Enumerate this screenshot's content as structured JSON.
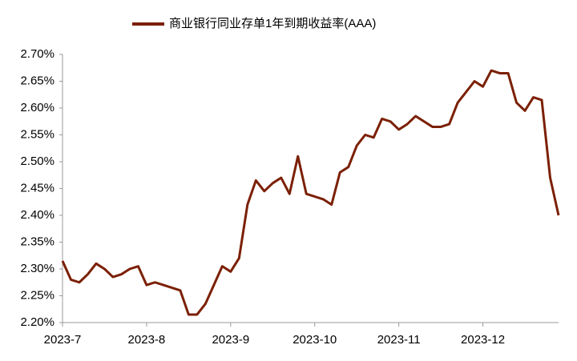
{
  "chart_data": {
    "type": "line",
    "categories": [
      "2023-7",
      null,
      null,
      null,
      null,
      null,
      null,
      null,
      null,
      null,
      "2023-8",
      null,
      null,
      null,
      null,
      null,
      null,
      null,
      null,
      null,
      "2023-9",
      null,
      null,
      null,
      null,
      null,
      null,
      null,
      null,
      null,
      "2023-10",
      null,
      null,
      null,
      null,
      null,
      null,
      null,
      null,
      null,
      "2023-11",
      null,
      null,
      null,
      null,
      null,
      null,
      null,
      null,
      null,
      "2023-12",
      null,
      null,
      null,
      null,
      null,
      null,
      null,
      null,
      null
    ],
    "series": [
      {
        "name": "商业银行同业存单1年到期收益率(AAA)",
        "color": "#7b2005",
        "values": [
          2.315,
          2.28,
          2.275,
          2.29,
          2.31,
          2.3,
          2.285,
          2.29,
          2.3,
          2.305,
          2.27,
          2.275,
          2.27,
          2.265,
          2.26,
          2.215,
          2.215,
          2.235,
          2.27,
          2.305,
          2.295,
          2.32,
          2.42,
          2.465,
          2.445,
          2.46,
          2.47,
          2.44,
          2.51,
          2.44,
          2.435,
          2.43,
          2.42,
          2.48,
          2.49,
          2.53,
          2.55,
          2.545,
          2.58,
          2.575,
          2.56,
          2.57,
          2.585,
          2.575,
          2.565,
          2.565,
          2.57,
          2.61,
          2.63,
          2.65,
          2.64,
          2.67,
          2.665,
          2.665,
          2.61,
          2.595,
          2.62,
          2.615,
          2.47,
          2.4
        ]
      }
    ],
    "ylim": [
      2.2,
      2.7
    ],
    "yticks": [
      {
        "value": 2.2,
        "label": "2.20%"
      },
      {
        "value": 2.25,
        "label": "2.25%"
      },
      {
        "value": 2.3,
        "label": "2.30%"
      },
      {
        "value": 2.35,
        "label": "2.35%"
      },
      {
        "value": 2.4,
        "label": "2.40%"
      },
      {
        "value": 2.45,
        "label": "2.45%"
      },
      {
        "value": 2.5,
        "label": "2.50%"
      },
      {
        "value": 2.55,
        "label": "2.55%"
      },
      {
        "value": 2.6,
        "label": "2.60%"
      },
      {
        "value": 2.65,
        "label": "2.65%"
      },
      {
        "value": 2.7,
        "label": "2.70%"
      }
    ],
    "legend": "top",
    "grid": false
  }
}
